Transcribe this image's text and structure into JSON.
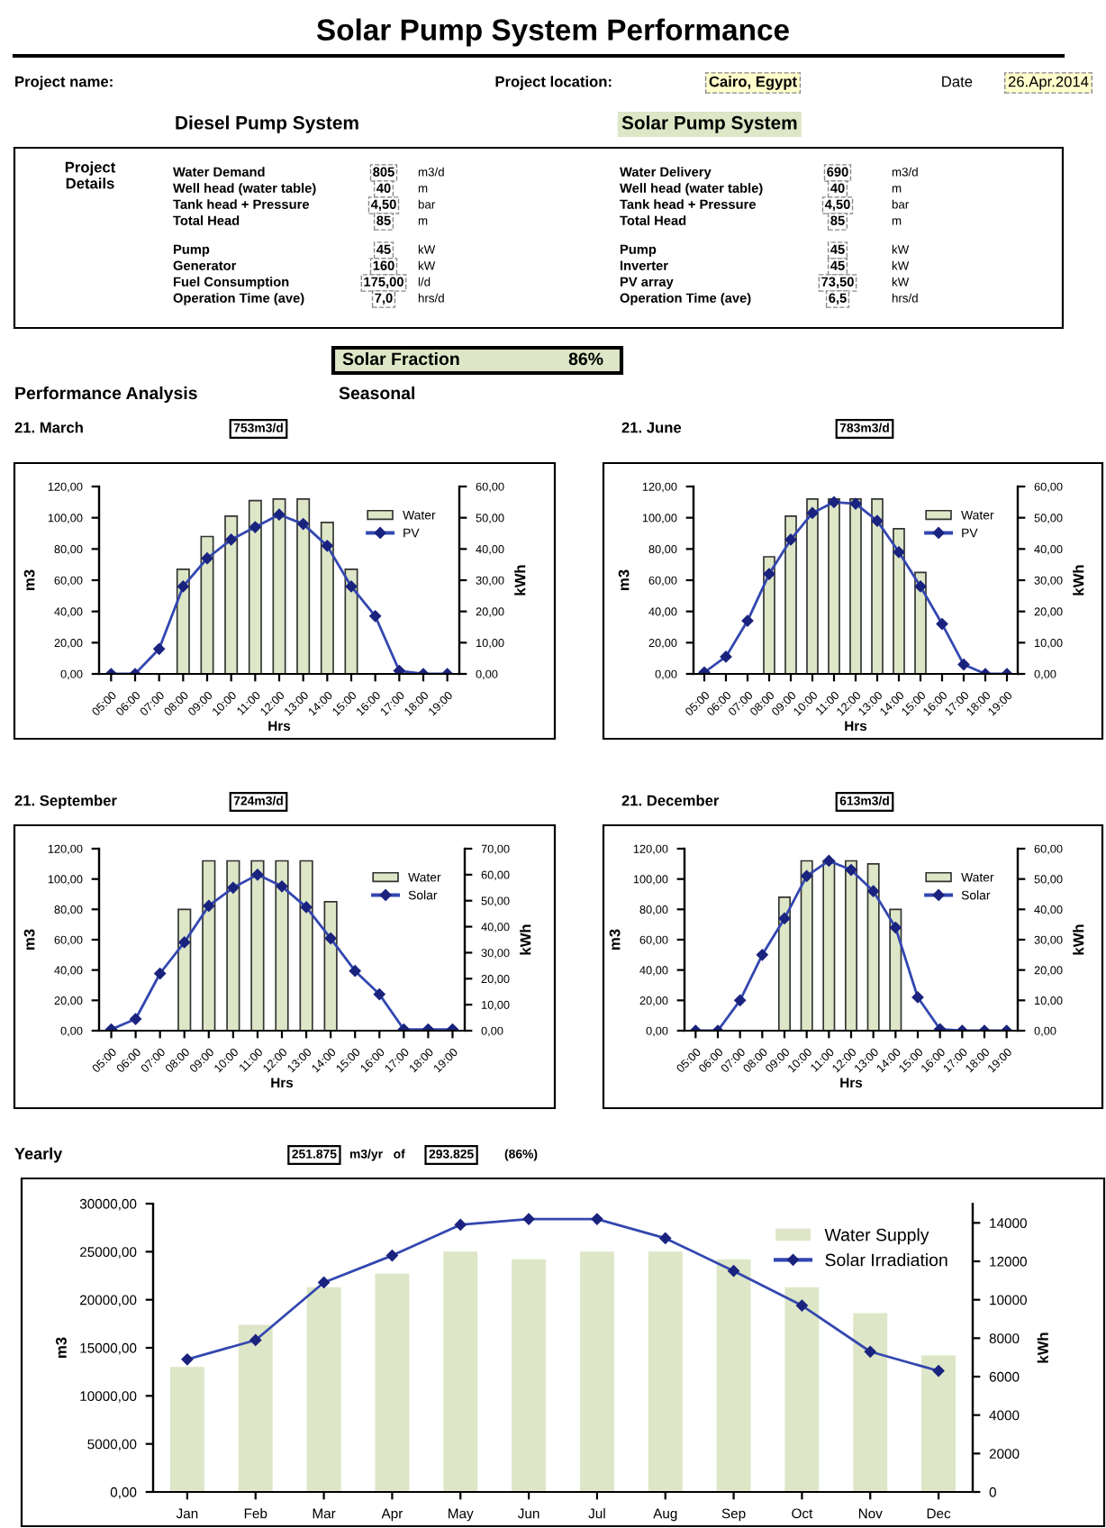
{
  "chart_data": [
    {
      "type": "other",
      "title": "Solar Pump System Performance",
      "annotations": [
        "Project name:",
        "Project location:",
        "Cairo, Egypt",
        "Date",
        "26.Apr.2014",
        "Diesel Pump System",
        "Solar Pump System",
        "Project\nDetails",
        "Water Demand",
        "Well head (water table)",
        "Tank head + Pressure",
        "Total Head",
        "Pump",
        "Generator",
        "Fuel Consumption",
        "Operation Time (ave)",
        "805",
        "40",
        "4,50",
        "85",
        "45",
        "160",
        "175,00",
        "7,0",
        "m3/d",
        "m",
        "bar",
        "m",
        "kW",
        "kW",
        "l/d",
        "hrs/d",
        "Water Delivery",
        "Well head (water table)",
        "Tank head + Pressure",
        "Total Head",
        "Pump",
        "Inverter",
        "PV array",
        "Operation Time (ave)",
        "690",
        "40",
        "4,50",
        "85",
        "45",
        "45",
        "73,50",
        "6,5",
        "m3/d",
        "m",
        "bar",
        "m",
        "kW",
        "kW",
        "kW",
        "hrs/d",
        "Solar Fraction",
        "86%",
        "Performance Analysis",
        "Seasonal"
      ]
    },
    {
      "type": "bar",
      "title": "21. March",
      "subtitle": "753m3/d",
      "xlabel": "Hrs",
      "ylabel": "m3",
      "y2label": "kWh",
      "legend": "top right",
      "grid": false,
      "categories": [
        "05:00",
        "06:00",
        "07:00",
        "08:00",
        "09:00",
        "10:00",
        "11:00",
        "12:00",
        "13:00",
        "14:00",
        "15:00",
        "16:00",
        "17:00",
        "18:00",
        "19:00"
      ],
      "ylim": [
        0,
        120
      ],
      "yticks": [
        {
          "value": 0,
          "label": "0,00"
        },
        {
          "value": 20,
          "label": "20,00"
        },
        {
          "value": 40,
          "label": "40,00"
        },
        {
          "value": 60,
          "label": "60,00"
        },
        {
          "value": 80,
          "label": "80,00"
        },
        {
          "value": 100,
          "label": "100,00"
        },
        {
          "value": 120,
          "label": "120,00"
        }
      ],
      "y2lim": [
        0,
        60
      ],
      "y2ticks": [
        {
          "value": 0,
          "label": "0,00"
        },
        {
          "value": 10,
          "label": "10,00"
        },
        {
          "value": 20,
          "label": "20,00"
        },
        {
          "value": 30,
          "label": "30,00"
        },
        {
          "value": 40,
          "label": "40,00"
        },
        {
          "value": 50,
          "label": "50,00"
        },
        {
          "value": 60,
          "label": "60,00"
        }
      ],
      "series": [
        {
          "name": "Water",
          "type": "bar",
          "color": "#dde6c6",
          "values": [
            null,
            null,
            null,
            67,
            88,
            101,
            111,
            112,
            112,
            97,
            67,
            null,
            null,
            null,
            null
          ]
        },
        {
          "name": "PV",
          "type": "line",
          "axis": "y2",
          "color": "#3347b0",
          "marker": "diamond",
          "values": [
            0,
            0,
            8,
            28,
            37,
            43,
            47,
            51,
            48,
            41,
            28,
            18.5,
            1,
            0,
            0
          ]
        }
      ]
    },
    {
      "type": "bar",
      "title": "21. June",
      "subtitle": "783m3/d",
      "xlabel": "Hrs",
      "ylabel": "m3",
      "y2label": "kWh",
      "legend": "top right",
      "grid": false,
      "categories": [
        "05:00",
        "06:00",
        "07:00",
        "08:00",
        "09:00",
        "10:00",
        "11:00",
        "12:00",
        "13:00",
        "14:00",
        "15:00",
        "16:00",
        "17:00",
        "18:00",
        "19:00"
      ],
      "ylim": [
        0,
        120
      ],
      "yticks": [
        {
          "value": 0,
          "label": "0,00"
        },
        {
          "value": 20,
          "label": "20,00"
        },
        {
          "value": 40,
          "label": "40,00"
        },
        {
          "value": 60,
          "label": "60,00"
        },
        {
          "value": 80,
          "label": "80,00"
        },
        {
          "value": 100,
          "label": "100,00"
        },
        {
          "value": 120,
          "label": "120,00"
        }
      ],
      "y2lim": [
        0,
        60
      ],
      "y2ticks": [
        {
          "value": 0,
          "label": "0,00"
        },
        {
          "value": 10,
          "label": "10,00"
        },
        {
          "value": 20,
          "label": "20,00"
        },
        {
          "value": 30,
          "label": "30,00"
        },
        {
          "value": 40,
          "label": "40,00"
        },
        {
          "value": 50,
          "label": "50,00"
        },
        {
          "value": 60,
          "label": "60,00"
        }
      ],
      "series": [
        {
          "name": "Water",
          "type": "bar",
          "color": "#dde6c6",
          "values": [
            null,
            null,
            null,
            75,
            101,
            112,
            112,
            112,
            112,
            93,
            65,
            null,
            null,
            null,
            null
          ]
        },
        {
          "name": "PV",
          "type": "line",
          "axis": "y2",
          "color": "#3347b0",
          "marker": "diamond",
          "values": [
            0.5,
            5.5,
            17,
            32,
            43,
            51.5,
            55,
            54.5,
            49,
            39,
            28,
            16,
            3,
            0,
            0
          ]
        }
      ]
    },
    {
      "type": "bar",
      "title": "21. September",
      "subtitle": "724m3/d",
      "xlabel": "Hrs",
      "ylabel": "m3",
      "y2label": "kWh",
      "legend": "top right",
      "grid": false,
      "categories": [
        "05:00",
        "06:00",
        "07:00",
        "08:00",
        "09:00",
        "10:00",
        "11:00",
        "12:00",
        "13:00",
        "14:00",
        "15:00",
        "16:00",
        "17:00",
        "18:00",
        "19:00"
      ],
      "ylim": [
        0,
        120
      ],
      "yticks": [
        {
          "value": 0,
          "label": "0,00"
        },
        {
          "value": 20,
          "label": "20,00"
        },
        {
          "value": 40,
          "label": "40,00"
        },
        {
          "value": 60,
          "label": "60,00"
        },
        {
          "value": 80,
          "label": "80,00"
        },
        {
          "value": 100,
          "label": "100,00"
        },
        {
          "value": 120,
          "label": "120,00"
        }
      ],
      "y2lim": [
        0,
        70
      ],
      "y2ticks": [
        {
          "value": 0,
          "label": "0,00"
        },
        {
          "value": 10,
          "label": "10,00"
        },
        {
          "value": 20,
          "label": "20,00"
        },
        {
          "value": 30,
          "label": "30,00"
        },
        {
          "value": 40,
          "label": "40,00"
        },
        {
          "value": 50,
          "label": "50,00"
        },
        {
          "value": 60,
          "label": "60,00"
        },
        {
          "value": 70,
          "label": "70,00"
        }
      ],
      "series": [
        {
          "name": "Water",
          "type": "bar",
          "color": "#dde6c6",
          "values": [
            null,
            null,
            null,
            80,
            112,
            112,
            112,
            112,
            112,
            85,
            null,
            null,
            null,
            null,
            null
          ]
        },
        {
          "name": "Solar",
          "type": "line",
          "axis": "y2",
          "color": "#3347b0",
          "marker": "diamond",
          "values": [
            0.5,
            4.5,
            22,
            34,
            48,
            55,
            60,
            55.5,
            47.5,
            35.5,
            23,
            14,
            0.5,
            0.5,
            0.5
          ]
        }
      ]
    },
    {
      "type": "bar",
      "title": "21. December",
      "subtitle": "613m3/d",
      "xlabel": "Hrs",
      "ylabel": "m3",
      "y2label": "kWh",
      "legend": "top right",
      "grid": false,
      "categories": [
        "05:00",
        "06:00",
        "07:00",
        "08:00",
        "09:00",
        "10:00",
        "11:00",
        "12:00",
        "13:00",
        "14:00",
        "15:00",
        "16:00",
        "17:00",
        "18:00",
        "19:00"
      ],
      "ylim": [
        0,
        120
      ],
      "yticks": [
        {
          "value": 0,
          "label": "0,00"
        },
        {
          "value": 20,
          "label": "20,00"
        },
        {
          "value": 40,
          "label": "40,00"
        },
        {
          "value": 60,
          "label": "60,00"
        },
        {
          "value": 80,
          "label": "80,00"
        },
        {
          "value": 100,
          "label": "100,00"
        },
        {
          "value": 120,
          "label": "120,00"
        }
      ],
      "y2lim": [
        0,
        60
      ],
      "y2ticks": [
        {
          "value": 0,
          "label": "0,00"
        },
        {
          "value": 10,
          "label": "10,00"
        },
        {
          "value": 20,
          "label": "20,00"
        },
        {
          "value": 30,
          "label": "30,00"
        },
        {
          "value": 40,
          "label": "40,00"
        },
        {
          "value": 50,
          "label": "50,00"
        },
        {
          "value": 60,
          "label": "60,00"
        }
      ],
      "series": [
        {
          "name": "Water",
          "type": "bar",
          "color": "#dde6c6",
          "values": [
            null,
            null,
            null,
            null,
            88,
            112,
            112,
            112,
            110,
            80,
            null,
            null,
            null,
            null,
            null
          ]
        },
        {
          "name": "Solar",
          "type": "line",
          "axis": "y2",
          "color": "#3347b0",
          "marker": "diamond",
          "values": [
            0,
            0,
            10,
            25,
            37,
            51,
            56,
            53,
            46,
            34,
            11,
            0.5,
            0,
            0,
            0
          ]
        }
      ]
    },
    {
      "type": "bar",
      "title": "Yearly",
      "annotations": [
        "251.875",
        "m3/yr   of",
        "293.825",
        "(86%)"
      ],
      "ylabel": "m3",
      "y2label": "kWh",
      "legend": "top right",
      "grid": false,
      "categories": [
        "Jan",
        "Feb",
        "Mar",
        "Apr",
        "May",
        "Jun",
        "Jul",
        "Aug",
        "Sep",
        "Oct",
        "Nov",
        "Dec"
      ],
      "ylim": [
        0,
        30000
      ],
      "yticks": [
        {
          "value": 0,
          "label": "0,00"
        },
        {
          "value": 5000,
          "label": "5000,00"
        },
        {
          "value": 10000,
          "label": "10000,00"
        },
        {
          "value": 15000,
          "label": "15000,00"
        },
        {
          "value": 20000,
          "label": "20000,00"
        },
        {
          "value": 25000,
          "label": "25000,00"
        },
        {
          "value": 30000,
          "label": "30000,00"
        }
      ],
      "y2lim": [
        0,
        15000
      ],
      "y2ticks": [
        0,
        2000,
        4000,
        6000,
        8000,
        10000,
        12000,
        14000
      ],
      "series": [
        {
          "name": "Water Supply",
          "type": "bar",
          "color": "#dde6c6",
          "values": [
            13000,
            17400,
            21300,
            22700,
            25000,
            24200,
            25000,
            25000,
            24200,
            21300,
            18600,
            14200
          ]
        },
        {
          "name": "Solar Irradiation",
          "type": "line",
          "axis": "y2",
          "color": "#3347b0",
          "marker": "diamond",
          "values": [
            6900,
            7900,
            10900,
            12300,
            13900,
            14200,
            14200,
            13200,
            11500,
            9700,
            7300,
            6300
          ]
        }
      ]
    }
  ]
}
